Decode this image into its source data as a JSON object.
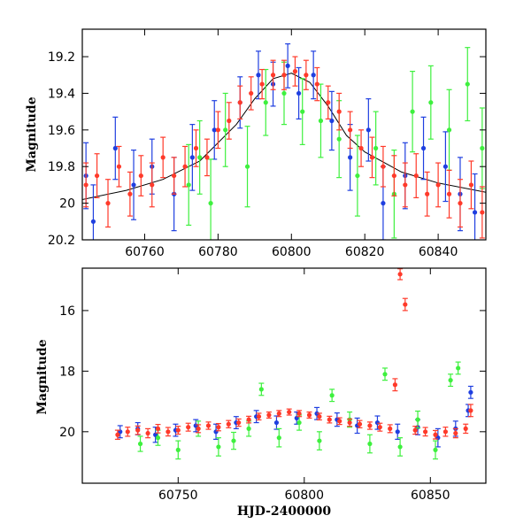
{
  "figure": {
    "top_ylabel": "Magnitude",
    "bottom_ylabel": "Magnitude",
    "bottom_xlabel": "HJD-2400000"
  },
  "colors": {
    "blue": "#1f3fe0",
    "green": "#3ef03e",
    "red": "#ff3a2a",
    "model": "#000000",
    "axes": "#000000"
  },
  "chart_data": [
    {
      "type": "scatter",
      "title": "",
      "xlabel": "",
      "ylabel": "Magnitude",
      "xlim": [
        60743,
        60853
      ],
      "ylim": [
        20.2,
        19.05
      ],
      "y_inverted": true,
      "x_ticks": [
        60760,
        60780,
        60800,
        60820,
        60840
      ],
      "x_tick_labels": [
        "60760",
        "60780",
        "60800",
        "60820",
        "60840"
      ],
      "y_ticks": [
        19.2,
        19.4,
        19.6,
        19.8,
        20.0,
        20.2
      ],
      "y_tick_labels": [
        "19.2",
        "19.4",
        "19.6",
        "19.8",
        "20",
        "20.2"
      ],
      "grid": false,
      "legend": "none",
      "errorbars": true,
      "model_curve": {
        "color": "#000000",
        "description": "microlensing fit",
        "x": [
          60743,
          60755,
          60765,
          60775,
          60785,
          60790,
          60795,
          60800,
          60805,
          60810,
          60815,
          60820,
          60830,
          60840,
          60853
        ],
        "y": [
          19.98,
          19.93,
          19.87,
          19.77,
          19.57,
          19.43,
          19.32,
          19.29,
          19.34,
          19.47,
          19.63,
          19.72,
          19.83,
          19.89,
          19.94
        ]
      },
      "series": [
        {
          "color": "#1f3fe0",
          "x": [
            60744,
            60746,
            60752,
            60757,
            60762,
            60768,
            60773,
            60779,
            60786,
            60791,
            60795,
            60799,
            60802,
            60806,
            60811,
            60816,
            60821,
            60825,
            60831,
            60836,
            60842,
            60846,
            60850
          ],
          "y": [
            19.85,
            20.1,
            19.7,
            19.9,
            19.8,
            19.95,
            19.75,
            19.6,
            19.45,
            19.3,
            19.35,
            19.25,
            19.4,
            19.3,
            19.55,
            19.75,
            19.6,
            20.0,
            19.85,
            19.7,
            19.8,
            19.95,
            20.05
          ],
          "err": [
            0.18,
            0.2,
            0.17,
            0.19,
            0.15,
            0.2,
            0.18,
            0.16,
            0.14,
            0.13,
            0.12,
            0.12,
            0.14,
            0.13,
            0.16,
            0.18,
            0.17,
            0.2,
            0.18,
            0.17,
            0.19,
            0.2,
            0.21
          ]
        },
        {
          "color": "#3ef03e",
          "x": [
            60772,
            60775,
            60778,
            60782,
            60788,
            60793,
            60798,
            60803,
            60808,
            60813,
            60818,
            60823,
            60828,
            60833,
            60838,
            60843,
            60848,
            60852
          ],
          "y": [
            19.9,
            19.75,
            20.0,
            19.6,
            19.8,
            19.45,
            19.4,
            19.5,
            19.55,
            19.65,
            19.85,
            19.7,
            19.95,
            19.5,
            19.45,
            19.6,
            19.35,
            19.7
          ],
          "err": [
            0.22,
            0.2,
            0.24,
            0.2,
            0.22,
            0.18,
            0.17,
            0.18,
            0.2,
            0.21,
            0.22,
            0.2,
            0.24,
            0.22,
            0.2,
            0.22,
            0.2,
            0.22
          ]
        },
        {
          "color": "#ff3a2a",
          "x": [
            60744,
            60747,
            60750,
            60753,
            60756,
            60759,
            60762,
            60765,
            60768,
            60771,
            60774,
            60777,
            60780,
            60783,
            60786,
            60789,
            60792,
            60795,
            60798,
            60801,
            60804,
            60807,
            60810,
            60813,
            60816,
            60819,
            60822,
            60825,
            60828,
            60831,
            60834,
            60837,
            60840,
            60843,
            60846,
            60849,
            60852
          ],
          "y": [
            19.9,
            19.85,
            20.0,
            19.8,
            19.95,
            19.85,
            19.9,
            19.75,
            19.85,
            19.8,
            19.7,
            19.75,
            19.6,
            19.55,
            19.45,
            19.4,
            19.35,
            19.3,
            19.3,
            19.28,
            19.3,
            19.35,
            19.45,
            19.5,
            19.6,
            19.7,
            19.75,
            19.8,
            19.85,
            19.9,
            19.85,
            19.95,
            19.9,
            19.95,
            20.0,
            19.9,
            20.05
          ],
          "err": [
            0.12,
            0.12,
            0.13,
            0.11,
            0.12,
            0.11,
            0.12,
            0.11,
            0.1,
            0.11,
            0.1,
            0.1,
            0.1,
            0.1,
            0.09,
            0.09,
            0.08,
            0.08,
            0.08,
            0.08,
            0.08,
            0.09,
            0.09,
            0.1,
            0.1,
            0.1,
            0.11,
            0.11,
            0.11,
            0.12,
            0.12,
            0.12,
            0.12,
            0.13,
            0.13,
            0.13,
            0.14
          ]
        }
      ]
    },
    {
      "type": "scatter",
      "title": "",
      "xlabel": "HJD-2400000",
      "ylabel": "Magnitude",
      "xlim": [
        60712,
        60872
      ],
      "ylim": [
        21.7,
        14.6
      ],
      "y_inverted": true,
      "x_ticks": [
        60750,
        60800,
        60850
      ],
      "x_tick_labels": [
        "60750",
        "60800",
        "60850"
      ],
      "y_ticks": [
        16,
        18,
        20
      ],
      "y_tick_labels": [
        "16",
        "18",
        "20"
      ],
      "grid": false,
      "legend": "none",
      "errorbars": true,
      "series": [
        {
          "color": "#1f3fe0",
          "x": [
            60727,
            60734,
            60741,
            60749,
            60757,
            60765,
            60773,
            60781,
            60789,
            60797,
            60805,
            60813,
            60821,
            60829,
            60837,
            60845,
            60853,
            60860,
            60865,
            60866
          ],
          "y": [
            20.0,
            19.9,
            20.1,
            19.95,
            19.8,
            20.0,
            19.7,
            19.5,
            19.7,
            19.55,
            19.4,
            19.6,
            19.8,
            19.7,
            20.0,
            19.85,
            20.2,
            19.9,
            19.3,
            18.7
          ],
          "err": [
            0.2,
            0.2,
            0.25,
            0.2,
            0.2,
            0.25,
            0.2,
            0.2,
            0.22,
            0.2,
            0.2,
            0.22,
            0.25,
            0.22,
            0.25,
            0.25,
            0.3,
            0.25,
            0.2,
            0.2
          ]
        },
        {
          "color": "#3ef03e",
          "x": [
            60735,
            60742,
            60750,
            60758,
            60766,
            60772,
            60778,
            60783,
            60790,
            60798,
            60806,
            60811,
            60818,
            60826,
            60832,
            60838,
            60845,
            60852,
            60858,
            60861
          ],
          "y": [
            20.4,
            20.2,
            20.6,
            19.9,
            20.5,
            20.3,
            19.9,
            18.6,
            20.2,
            19.7,
            20.3,
            18.8,
            19.6,
            20.4,
            18.1,
            20.5,
            19.6,
            20.6,
            18.3,
            17.9
          ],
          "err": [
            0.25,
            0.25,
            0.3,
            0.25,
            0.3,
            0.28,
            0.25,
            0.2,
            0.3,
            0.25,
            0.3,
            0.2,
            0.25,
            0.3,
            0.2,
            0.3,
            0.28,
            0.3,
            0.2,
            0.2
          ]
        },
        {
          "color": "#ff3a2a",
          "x": [
            60726,
            60730,
            60734,
            60738,
            60742,
            60746,
            60750,
            60754,
            60758,
            60762,
            60766,
            60770,
            60774,
            60778,
            60782,
            60786,
            60790,
            60794,
            60798,
            60802,
            60806,
            60810,
            60814,
            60818,
            60822,
            60826,
            60830,
            60834,
            60836,
            60838,
            60840,
            60844,
            60848,
            60852,
            60856,
            60860,
            60864,
            60866
          ],
          "y": [
            20.1,
            20.0,
            19.95,
            20.05,
            19.9,
            20.0,
            19.95,
            19.85,
            19.9,
            19.8,
            19.85,
            19.75,
            19.7,
            19.6,
            19.5,
            19.45,
            19.4,
            19.35,
            19.4,
            19.45,
            19.5,
            19.6,
            19.65,
            19.7,
            19.75,
            19.8,
            19.85,
            19.9,
            18.45,
            14.8,
            15.8,
            19.95,
            20.0,
            20.1,
            20.0,
            20.05,
            19.9,
            19.3
          ],
          "err": [
            0.15,
            0.15,
            0.14,
            0.15,
            0.14,
            0.14,
            0.13,
            0.13,
            0.13,
            0.12,
            0.12,
            0.12,
            0.12,
            0.11,
            0.11,
            0.1,
            0.1,
            0.1,
            0.1,
            0.1,
            0.11,
            0.11,
            0.11,
            0.12,
            0.12,
            0.12,
            0.13,
            0.13,
            0.2,
            0.18,
            0.2,
            0.13,
            0.14,
            0.14,
            0.15,
            0.15,
            0.15,
            0.2
          ]
        }
      ]
    }
  ]
}
